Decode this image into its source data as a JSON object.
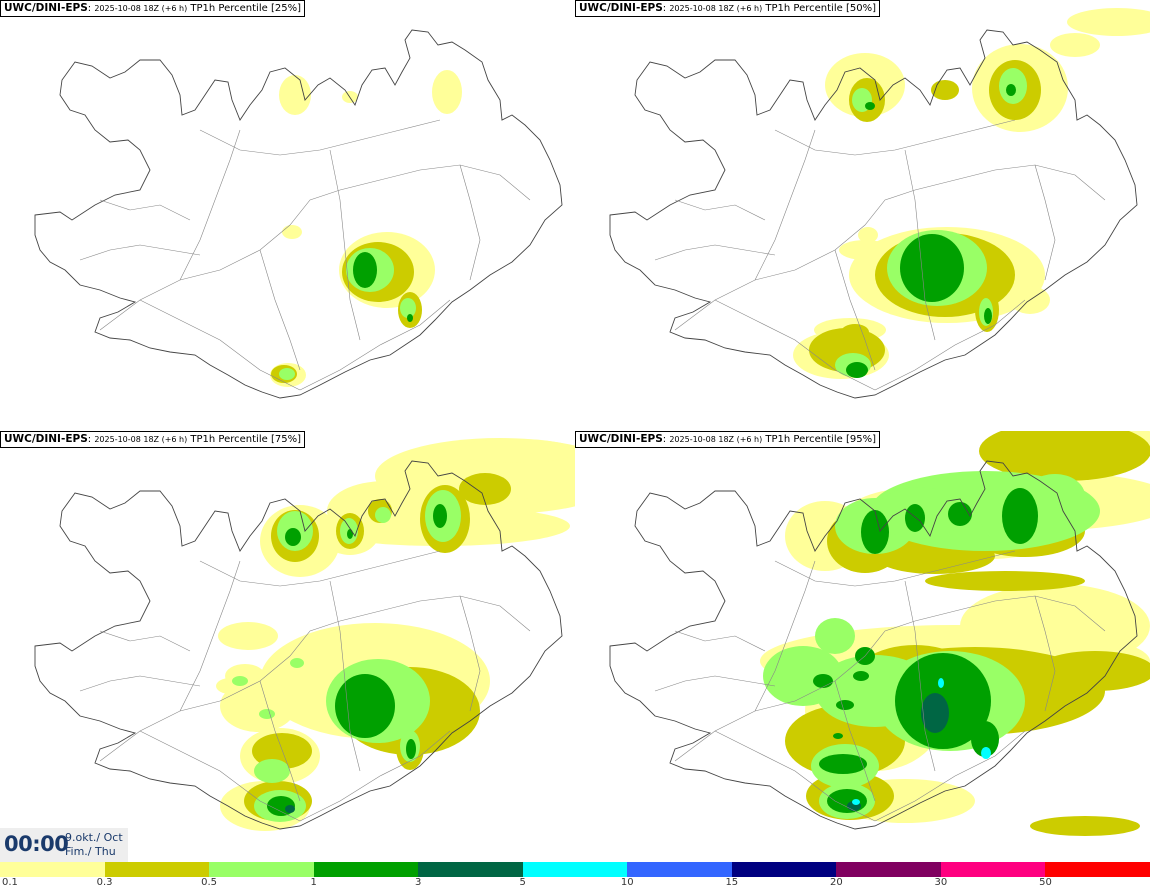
{
  "panels": [
    {
      "model": "UWC/DINI-EPS",
      "run": "2025-10-08 18Z (+6 h)",
      "field": "TP1h Percentile [25%]"
    },
    {
      "model": "UWC/DINI-EPS",
      "run": "2025-10-08 18Z (+6 h)",
      "field": "TP1h Percentile [50%]"
    },
    {
      "model": "UWC/DINI-EPS",
      "run": "2025-10-08 18Z (+6 h)",
      "field": "TP1h Percentile [75%]"
    },
    {
      "model": "UWC/DINI-EPS",
      "run": "2025-10-08 18Z (+6 h)",
      "field": "TP1h Percentile [95%]"
    }
  ],
  "valid_time": {
    "time": "00:00",
    "date_line1": "9.okt./ Oct",
    "date_line2": "Fim./ Thu"
  },
  "legend": {
    "labels": [
      "0.1",
      "0.3",
      "0.5",
      "1",
      "3",
      "5",
      "10",
      "15",
      "20",
      "30",
      "50"
    ],
    "colors": [
      "#ffff99",
      "#cccc00",
      "#99ff66",
      "#00a000",
      "#006644",
      "#00ffff",
      "#3366ff",
      "#000080",
      "#800060",
      "#ff0080",
      "#ff0000"
    ]
  }
}
